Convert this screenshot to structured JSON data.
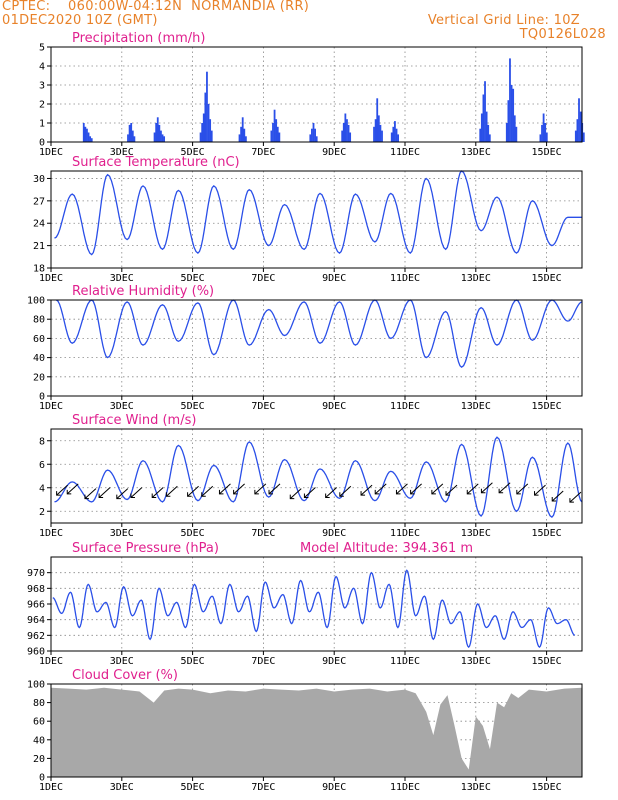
{
  "header": {
    "line1_left": "CPTEC:    060:00W-04:12N  NORMANDIA (RR)",
    "line2_left": "01DEC2020 10Z (GMT)",
    "line2_right": "Vertical Grid Line: 10Z",
    "line3_right": "TQ0126L028"
  },
  "colors": {
    "header": "#e8822a",
    "title": "#e0208e",
    "series": "#2a4fe8",
    "cloud": "#a8a8a8",
    "arrow": "#000000"
  },
  "x_labels": [
    "1DEC",
    "3DEC",
    "5DEC",
    "7DEC",
    "9DEC",
    "11DEC",
    "13DEC",
    "15DEC"
  ],
  "chart_data": [
    {
      "type": "bar",
      "title": "Precipitation (mm/h)",
      "ylim": [
        0,
        5
      ],
      "yticks": [
        0,
        1,
        2,
        3,
        4,
        5
      ],
      "x_range_days": [
        0,
        15
      ],
      "bursts": [
        {
          "day": 0.9,
          "values": [
            1.0,
            0.8,
            0.7,
            0.5,
            0.3,
            0.2
          ]
        },
        {
          "day": 2.15,
          "values": [
            0.4,
            0.9,
            1.0,
            0.6,
            0.3
          ]
        },
        {
          "day": 2.9,
          "values": [
            0.5,
            1.0,
            1.3,
            0.9,
            0.6,
            0.4,
            0.3
          ]
        },
        {
          "day": 4.2,
          "values": [
            0.5,
            1.0,
            1.5,
            2.6,
            3.7,
            2.0,
            1.2,
            0.6
          ]
        },
        {
          "day": 5.3,
          "values": [
            0.4,
            0.8,
            1.3,
            0.7,
            0.3
          ]
        },
        {
          "day": 6.2,
          "values": [
            0.6,
            1.0,
            1.7,
            1.2,
            0.8,
            0.5
          ]
        },
        {
          "day": 7.3,
          "values": [
            0.4,
            0.7,
            1.0,
            0.7,
            0.3
          ]
        },
        {
          "day": 8.2,
          "values": [
            0.6,
            1.0,
            1.5,
            1.2,
            0.9,
            0.5
          ]
        },
        {
          "day": 9.1,
          "values": [
            0.8,
            1.2,
            2.3,
            1.4,
            0.9,
            0.6
          ]
        },
        {
          "day": 9.6,
          "values": [
            0.5,
            0.8,
            1.1,
            0.7,
            0.4
          ]
        },
        {
          "day": 12.1,
          "values": [
            0.7,
            1.5,
            2.5,
            3.2,
            1.6,
            0.9,
            0.4
          ]
        },
        {
          "day": 12.85,
          "values": [
            1.0,
            2.2,
            4.4,
            3.0,
            2.8,
            1.4,
            0.8
          ]
        },
        {
          "day": 13.8,
          "values": [
            0.4,
            0.9,
            1.5,
            1.0,
            0.5
          ]
        },
        {
          "day": 14.8,
          "values": [
            0.6,
            1.2,
            2.3,
            1.6,
            1.0,
            0.5
          ]
        }
      ]
    },
    {
      "type": "line",
      "title": "Surface Temperature (nC)",
      "ylim": [
        18,
        31
      ],
      "yticks": [
        18,
        21,
        24,
        27,
        30
      ],
      "peak_days": [
        0.6,
        1.6,
        2.6,
        3.6,
        4.6,
        5.6,
        6.6,
        7.6,
        8.6,
        9.6,
        10.6,
        11.6,
        12.6,
        13.6,
        14.6
      ],
      "peaks": [
        27.9,
        30.5,
        29.0,
        28.4,
        29.0,
        28.5,
        26.5,
        28.0,
        27.9,
        28.0,
        30.0,
        31.0,
        27.5,
        27.0,
        24.8
      ],
      "trough_days": [
        0.1,
        1.15,
        2.15,
        3.15,
        4.15,
        5.15,
        6.15,
        7.15,
        8.15,
        9.15,
        10.15,
        11.15,
        12.15,
        13.15,
        14.15,
        15.0
      ],
      "troughs": [
        22.0,
        19.8,
        21.8,
        20.5,
        20.0,
        20.5,
        21.0,
        20.5,
        20.0,
        21.5,
        20.0,
        20.5,
        23.0,
        20.0,
        21.0,
        24.8
      ]
    },
    {
      "type": "line",
      "title": "Relative Humidity (%)",
      "ylim": [
        0,
        100
      ],
      "yticks": [
        0,
        20,
        40,
        60,
        80,
        100
      ],
      "peak_days": [
        0.15,
        1.15,
        2.15,
        3.15,
        4.15,
        5.15,
        6.15,
        7.15,
        8.15,
        9.15,
        10.15,
        11.15,
        12.15,
        13.15,
        14.15,
        15.0
      ],
      "peaks": [
        100,
        100,
        98,
        95,
        97,
        100,
        90,
        98,
        98,
        100,
        100,
        88,
        92,
        100,
        100,
        98
      ],
      "trough_days": [
        0.6,
        1.6,
        2.6,
        3.6,
        4.6,
        5.6,
        6.6,
        7.6,
        8.6,
        9.6,
        10.6,
        11.6,
        12.6,
        13.6,
        14.6
      ],
      "troughs": [
        55,
        40,
        53,
        57,
        43,
        53,
        63,
        55,
        53,
        60,
        40,
        30,
        53,
        58,
        78
      ]
    },
    {
      "type": "line",
      "title": "Surface Wind (m/s)",
      "ylim": [
        1,
        9
      ],
      "yticks": [
        2,
        4,
        6,
        8
      ],
      "peak_days": [
        0.6,
        1.6,
        2.6,
        3.6,
        4.6,
        5.6,
        6.6,
        7.6,
        8.6,
        9.6,
        10.6,
        11.6,
        12.6,
        13.6,
        14.6
      ],
      "peaks": [
        4.5,
        5.5,
        6.3,
        7.6,
        5.9,
        7.9,
        6.4,
        5.6,
        6.3,
        5.4,
        6.2,
        7.7,
        8.3,
        6.6,
        7.8
      ],
      "trough_days": [
        0.1,
        1.15,
        2.15,
        3.15,
        4.15,
        5.15,
        6.15,
        7.15,
        8.15,
        9.15,
        10.15,
        11.15,
        12.15,
        13.15,
        14.15,
        15.0
      ],
      "troughs": [
        2.8,
        2.8,
        3.0,
        2.8,
        2.9,
        2.8,
        3.2,
        2.9,
        3.1,
        2.9,
        3.1,
        2.8,
        1.6,
        2.0,
        1.5,
        2.8
      ],
      "arrows_x_days": [
        0.3,
        0.6,
        1.1,
        1.5,
        2.0,
        2.4,
        3.0,
        3.4,
        4.0,
        4.4,
        4.9,
        5.3,
        5.9,
        6.3,
        6.9,
        7.3,
        7.9,
        8.3,
        8.9,
        9.3,
        9.9,
        10.3,
        10.9,
        11.3,
        11.9,
        12.3,
        12.8,
        13.3,
        13.8,
        14.3,
        14.8
      ],
      "arrows_y": [
        3.8,
        3.9,
        3.5,
        3.6,
        3.5,
        3.6,
        3.6,
        3.7,
        3.7,
        3.7,
        3.9,
        3.9,
        3.9,
        3.9,
        3.5,
        3.6,
        3.6,
        3.7,
        3.8,
        3.9,
        3.9,
        3.9,
        3.9,
        3.8,
        3.9,
        4.0,
        4.0,
        3.9,
        3.8,
        3.3,
        3.2
      ]
    },
    {
      "type": "line",
      "title": "Surface Pressure (hPa)",
      "annotation": "Model Altitude: 394.361 m",
      "ylim": [
        960,
        972
      ],
      "yticks": [
        960,
        962,
        964,
        966,
        968,
        970
      ],
      "peak_days": [
        0.05,
        0.55,
        1.05,
        1.55,
        2.05,
        2.55,
        3.05,
        3.55,
        4.05,
        4.55,
        5.05,
        5.55,
        6.05,
        6.55,
        7.05,
        7.55,
        8.05,
        8.55,
        9.05,
        9.55,
        10.05,
        10.55,
        11.05,
        11.55,
        12.05,
        12.55,
        13.05,
        13.55,
        14.05,
        14.55
      ],
      "peaks": [
        966.8,
        967.5,
        968.5,
        966.2,
        968.2,
        966.5,
        968.0,
        966.2,
        968.5,
        967.0,
        968.5,
        967.0,
        968.8,
        967.2,
        969.0,
        967.5,
        969.5,
        968.0,
        970.0,
        968.5,
        970.3,
        967.0,
        966.5,
        965.0,
        966.0,
        964.5,
        965.0,
        964.0,
        965.5,
        964.0
      ],
      "trough_days": [
        0.3,
        0.8,
        1.3,
        1.8,
        2.3,
        2.8,
        3.3,
        3.8,
        4.3,
        4.8,
        5.3,
        5.8,
        6.3,
        6.8,
        7.3,
        7.8,
        8.3,
        8.8,
        9.3,
        9.8,
        10.3,
        10.8,
        11.3,
        11.8,
        12.3,
        12.8,
        13.3,
        13.8,
        14.3,
        14.8
      ],
      "troughs": [
        964.8,
        963.0,
        965.0,
        963.0,
        964.5,
        961.5,
        964.5,
        963.0,
        965.0,
        963.5,
        965.0,
        962.5,
        965.5,
        963.5,
        965.0,
        963.0,
        965.5,
        963.5,
        965.5,
        963.0,
        964.5,
        961.5,
        963.5,
        960.5,
        963.0,
        961.5,
        963.0,
        960.5,
        963.5,
        962.0
      ]
    },
    {
      "type": "area",
      "title": "Cloud Cover (%)",
      "ylim": [
        0,
        100
      ],
      "yticks": [
        0,
        20,
        40,
        60,
        80,
        100
      ],
      "x_days": [
        0,
        0.5,
        1.0,
        1.5,
        2.0,
        2.5,
        2.9,
        3.2,
        3.6,
        4.0,
        4.5,
        5.0,
        5.5,
        6.0,
        6.5,
        7.0,
        7.5,
        8.0,
        8.5,
        9.0,
        9.5,
        10.0,
        10.3,
        10.6,
        10.8,
        11.0,
        11.2,
        11.4,
        11.6,
        11.8,
        12.0,
        12.2,
        12.4,
        12.6,
        12.8,
        13.0,
        13.2,
        13.5,
        14.0,
        14.5,
        15.0
      ],
      "values": [
        96,
        95,
        94,
        96,
        94,
        92,
        80,
        93,
        95,
        94,
        90,
        93,
        92,
        95,
        94,
        93,
        95,
        92,
        94,
        95,
        92,
        94,
        90,
        70,
        45,
        78,
        88,
        55,
        20,
        8,
        65,
        55,
        30,
        80,
        75,
        90,
        85,
        94,
        92,
        95,
        96
      ]
    }
  ]
}
